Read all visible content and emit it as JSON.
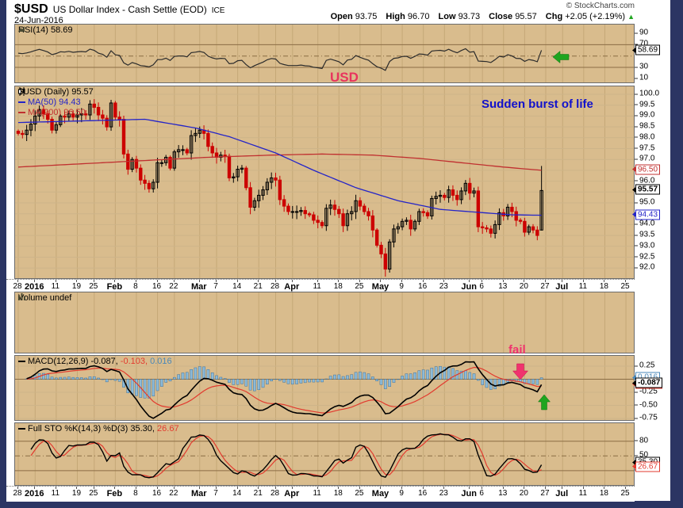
{
  "colors": {
    "page_bg": "#2B3563",
    "panel_bg": "#D9BC8D",
    "grid_v": "#C5A877",
    "grid_h_light": "#CDB489",
    "grid_h_dark": "#8A6D45",
    "candle_down": "#CC0000",
    "candle_up_outline": "#000000",
    "ma50": "#2424C8",
    "ma200": "#C03030",
    "rsi_line": "#2b2b2b",
    "macd_line": "#000000",
    "macd_signal": "#E23A2E",
    "macd_hist_fill": "#8CBAD8",
    "macd_hist_stroke": "#44749B",
    "sto_k": "#000000",
    "sto_d": "#E23A2E",
    "green_arrow": "#1FA51F",
    "pink": "#F0336E",
    "annotation_blue": "#1111CC",
    "annotation_pink": "#E8345E"
  },
  "header": {
    "symbol": "$USD",
    "description": "US Dollar Index - Cash Settle (EOD)",
    "exchange": "ICE",
    "date": "24-Jun-2016",
    "copyright": "© StockCharts.com",
    "ohlc": {
      "open_label": "Open",
      "open": "93.75",
      "high_label": "High",
      "high": "96.70",
      "low_label": "Low",
      "low": "93.73",
      "close_label": "Close",
      "close": "95.57",
      "chg_label": "Chg",
      "chg": "+2.05 (+2.19%)",
      "direction": "▲"
    }
  },
  "panels": {
    "rsi": {
      "legend": "RSI(14) 58.69"
    },
    "main": {
      "legend_symbol": "$USD (Daily) 95.57",
      "legend_ma50": "MA(50) 94.43",
      "legend_ma200": "MA(200) 96.50"
    },
    "volume": {
      "legend": "Volume undef"
    },
    "macd": {
      "legend_name": "MACD(12,26,9)",
      "legend_v1": "-0.087,",
      "legend_v2": "-0.103,",
      "legend_v3": "0.016"
    },
    "sto": {
      "legend_main": "Full STO %K(14,3) %D(3) 35.30,",
      "legend_d": "26.67"
    }
  },
  "annotations": {
    "usd": "USD",
    "burst": "Sudden burst of life",
    "fail": "fail"
  },
  "chart_data": {
    "type": "candlestick+indicators",
    "symbol": "$USD",
    "timeframe": "Daily",
    "x_axis": {
      "total_slots": 147,
      "ticks": [
        {
          "d": 0,
          "t": "28"
        },
        {
          "d": 4,
          "t": "2016",
          "bold": true
        },
        {
          "d": 9,
          "t": "11"
        },
        {
          "d": 14,
          "t": "19"
        },
        {
          "d": 18,
          "t": "25"
        },
        {
          "d": 23,
          "t": "Feb",
          "bold": true
        },
        {
          "d": 28,
          "t": "8"
        },
        {
          "d": 33,
          "t": "16"
        },
        {
          "d": 37,
          "t": "22"
        },
        {
          "d": 43,
          "t": "Mar",
          "bold": true
        },
        {
          "d": 47,
          "t": "7"
        },
        {
          "d": 52,
          "t": "14"
        },
        {
          "d": 57,
          "t": "21"
        },
        {
          "d": 61,
          "t": "28"
        },
        {
          "d": 65,
          "t": "Apr",
          "bold": true
        },
        {
          "d": 71,
          "t": "11"
        },
        {
          "d": 76,
          "t": "18"
        },
        {
          "d": 81,
          "t": "25"
        },
        {
          "d": 86,
          "t": "May",
          "bold": true
        },
        {
          "d": 91,
          "t": "9"
        },
        {
          "d": 96,
          "t": "16"
        },
        {
          "d": 101,
          "t": "23"
        },
        {
          "d": 107,
          "t": "Jun",
          "bold": true
        },
        {
          "d": 110,
          "t": "6"
        },
        {
          "d": 115,
          "t": "13"
        },
        {
          "d": 120,
          "t": "20"
        },
        {
          "d": 125,
          "t": "27"
        },
        {
          "d": 129,
          "t": "Jul",
          "bold": true
        },
        {
          "d": 134,
          "t": "11"
        },
        {
          "d": 139,
          "t": "18"
        },
        {
          "d": 144,
          "t": "25"
        }
      ]
    },
    "price": {
      "ylim": [
        92.0,
        100.0
      ],
      "grid_step": 0.5,
      "axis_labels": [
        {
          "v": 100.0,
          "t": "100.0"
        },
        {
          "v": 99.5,
          "t": "99.5"
        },
        {
          "v": 99.0,
          "t": "99.0"
        },
        {
          "v": 98.5,
          "t": "98.5"
        },
        {
          "v": 98.0,
          "t": "98.0"
        },
        {
          "v": 97.5,
          "t": "97.5"
        },
        {
          "v": 97.0,
          "t": "97.0"
        },
        {
          "v": 96.0,
          "t": "96.0"
        },
        {
          "v": 95.0,
          "t": "95.0"
        },
        {
          "v": 94.0,
          "t": "94.0"
        },
        {
          "v": 93.5,
          "t": "93.5"
        },
        {
          "v": 93.0,
          "t": "93.0"
        },
        {
          "v": 92.5,
          "t": "92.5"
        },
        {
          "v": 92.0,
          "t": "92.0"
        }
      ],
      "closes": [
        98.2,
        98.15,
        98.35,
        98.63,
        99.0,
        99.3,
        99.1,
        98.85,
        98.35,
        98.6,
        99.0,
        98.95,
        99.1,
        98.95,
        99.05,
        99.1,
        99.05,
        99.55,
        99.4,
        99.05,
        98.9,
        98.5,
        99.6,
        98.95,
        98.85,
        97.25,
        96.55,
        97.0,
        96.6,
        96.05,
        95.9,
        95.65,
        95.95,
        96.85,
        96.85,
        97.1,
        96.6,
        97.35,
        97.45,
        97.45,
        97.3,
        98.1,
        98.2,
        98.35,
        98.2,
        97.6,
        97.3,
        97.1,
        97.2,
        97.15,
        96.15,
        96.2,
        96.55,
        96.6,
        95.7,
        94.8,
        95.1,
        95.35,
        95.6,
        95.95,
        96.15,
        96.05,
        95.15,
        94.85,
        94.6,
        94.6,
        94.6,
        94.65,
        94.5,
        94.45,
        94.2,
        94.1,
        93.95,
        94.75,
        94.9,
        94.7,
        94.5,
        93.95,
        94.5,
        94.6,
        95.1,
        94.85,
        94.6,
        94.4,
        93.75,
        93.05,
        92.65,
        91.95,
        93.2,
        93.8,
        93.9,
        94.15,
        94.2,
        93.8,
        94.15,
        94.6,
        94.55,
        94.4,
        95.2,
        95.3,
        95.35,
        95.25,
        95.6,
        95.35,
        95.15,
        95.55,
        95.9,
        95.45,
        95.55,
        93.9,
        93.85,
        93.8,
        93.6,
        94.0,
        94.55,
        94.4,
        94.8,
        94.6,
        94.2,
        94.15,
        93.65,
        93.9,
        93.75,
        93.5,
        95.57
      ],
      "last_ohlc": {
        "open": 93.75,
        "high": 96.7,
        "low": 93.73,
        "close": 95.57
      }
    },
    "ma50": {
      "period": 50,
      "last": 94.43,
      "anchors": [
        [
          0,
          98.7
        ],
        [
          10,
          98.75
        ],
        [
          20,
          98.8
        ],
        [
          30,
          98.85
        ],
        [
          42,
          98.45
        ],
        [
          50,
          98.05
        ],
        [
          61,
          97.3
        ],
        [
          70,
          96.5
        ],
        [
          80,
          95.7
        ],
        [
          90,
          95.1
        ],
        [
          100,
          94.7
        ],
        [
          110,
          94.55
        ],
        [
          117,
          94.45
        ],
        [
          124,
          94.43
        ]
      ]
    },
    "ma200": {
      "period": 200,
      "last": 96.5,
      "anchors": [
        [
          0,
          96.65
        ],
        [
          15,
          96.8
        ],
        [
          30,
          96.95
        ],
        [
          45,
          97.1
        ],
        [
          60,
          97.2
        ],
        [
          72,
          97.25
        ],
        [
          84,
          97.2
        ],
        [
          95,
          97.05
        ],
        [
          105,
          96.85
        ],
        [
          115,
          96.65
        ],
        [
          124,
          96.5
        ]
      ]
    },
    "rsi": {
      "period": 14,
      "last": 58.69,
      "axis_labels": [
        {
          "v": 90,
          "t": "90"
        },
        {
          "v": 70,
          "t": "70"
        },
        {
          "v": 30,
          "t": "30"
        },
        {
          "v": 10,
          "t": "10"
        }
      ],
      "lines": {
        "solid": [
          70,
          30
        ],
        "dashdot": [
          50
        ]
      },
      "derived_from_closes": true
    },
    "volume": {
      "status": "undef"
    },
    "macd": {
      "params": [
        12,
        26,
        9
      ],
      "last_macd": -0.087,
      "last_signal": -0.103,
      "last_hist": 0.016,
      "axis_labels": [
        {
          "v": 0.25,
          "t": "0.25"
        },
        {
          "v": -0.25,
          "t": "-0.25"
        },
        {
          "v": -0.5,
          "t": "-0.50"
        },
        {
          "v": -0.75,
          "t": "-0.75"
        }
      ],
      "derived_from_closes": true
    },
    "sto": {
      "params": "%K(14,3) %D(3)",
      "last_k": 35.3,
      "last_d": 26.67,
      "axis_labels": [
        {
          "v": 80,
          "t": "80"
        },
        {
          "v": 50,
          "t": "50"
        },
        {
          "v": 20,
          "t": "20"
        }
      ],
      "lines": {
        "solid": [
          80,
          20
        ],
        "dashdot": [
          50
        ]
      },
      "derived_from_closes": true
    },
    "tags": [
      {
        "panel": "rsi",
        "v": 58.69,
        "t": "58.69",
        "color": "#000000",
        "bold": false
      },
      {
        "panel": "main",
        "v": 96.5,
        "t": "96.50",
        "color": "#C03030",
        "bold": false
      },
      {
        "panel": "main",
        "v": 95.57,
        "t": "95.57",
        "color": "#000000",
        "bold": true
      },
      {
        "panel": "main",
        "v": 94.43,
        "t": "94.43",
        "color": "#2424C8",
        "bold": false
      },
      {
        "panel": "macd",
        "v": -0.103,
        "t": "-0.103",
        "color": "#E23A2E",
        "bold": false
      },
      {
        "panel": "macd",
        "v": 0.016,
        "t": "0.016",
        "color": "#4A87B8",
        "bold": false
      },
      {
        "panel": "macd",
        "v": -0.087,
        "t": "-0.087",
        "color": "#000000",
        "bold": true
      },
      {
        "panel": "sto",
        "v": 35.3,
        "t": "35.30",
        "color": "#000000",
        "bold": false
      },
      {
        "panel": "sto",
        "v": 26.67,
        "t": "26.67",
        "color": "#E23A2E",
        "bold": false
      }
    ]
  }
}
